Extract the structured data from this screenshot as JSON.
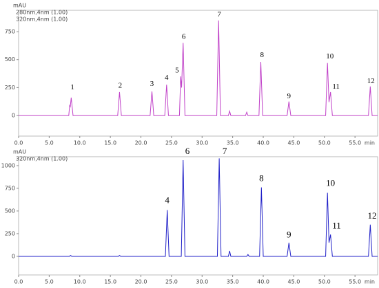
{
  "chart_data": [
    {
      "type": "line",
      "y_label": "mAU",
      "x_label": "min",
      "overlay_label": "320nm,4nm (1.00)",
      "overlay_color": "#e8b8e8",
      "x": [
        0,
        8.2,
        8.35,
        8.45,
        8.6,
        8.9,
        16.2,
        16.5,
        16.8,
        21.5,
        21.8,
        22.1,
        23.9,
        24.2,
        24.5,
        26.3,
        26.5,
        26.65,
        26.9,
        27.2,
        32.4,
        32.7,
        33.0,
        34.3,
        34.5,
        34.7,
        37.1,
        37.3,
        37.5,
        39.3,
        39.6,
        39.9,
        43.9,
        44.2,
        44.5,
        50.2,
        50.5,
        50.75,
        51.0,
        51.3,
        57.2,
        57.5,
        57.8,
        58.7
      ],
      "series": [
        {
          "name": "280nm,4nm (1.00)",
          "color": "#c040c8",
          "values": [
            0,
            0,
            90,
            80,
            160,
            0,
            0,
            210,
            0,
            0,
            215,
            0,
            0,
            275,
            0,
            0,
            350,
            250,
            650,
            0,
            0,
            850,
            0,
            0,
            40,
            0,
            0,
            30,
            0,
            0,
            480,
            0,
            0,
            125,
            0,
            0,
            470,
            120,
            210,
            0,
            0,
            260,
            0,
            0
          ]
        }
      ],
      "annotations": [
        {
          "text": "1",
          "x": 8.8,
          "y": 250
        },
        {
          "text": "2",
          "x": 16.6,
          "y": 265
        },
        {
          "text": "3",
          "x": 21.8,
          "y": 280
        },
        {
          "text": "4",
          "x": 24.2,
          "y": 335
        },
        {
          "text": "5",
          "x": 25.9,
          "y": 400
        },
        {
          "text": "6",
          "x": 27.0,
          "y": 700
        },
        {
          "text": "7",
          "x": 32.8,
          "y": 900
        },
        {
          "text": "8",
          "x": 39.8,
          "y": 540
        },
        {
          "text": "9",
          "x": 44.2,
          "y": 170
        },
        {
          "text": "10",
          "x": 50.9,
          "y": 525
        },
        {
          "text": "11",
          "x": 51.9,
          "y": 255
        },
        {
          "text": "12",
          "x": 57.6,
          "y": 305
        }
      ],
      "xlim": [
        0,
        58.7
      ],
      "ylim": [
        -184,
        941
      ],
      "yticks": [
        0,
        250,
        500,
        750
      ],
      "xticks": [
        {
          "value": 0,
          "label": "0.0"
        },
        {
          "value": 5,
          "label": "5.0"
        },
        {
          "value": 10,
          "label": "10.0"
        },
        {
          "value": 15,
          "label": "15.0"
        },
        {
          "value": 20,
          "label": "20.0"
        },
        {
          "value": 25,
          "label": "25.0"
        },
        {
          "value": 30,
          "label": "30.0"
        },
        {
          "value": 35,
          "label": "35.0"
        },
        {
          "value": 40,
          "label": "40.0"
        },
        {
          "value": 45,
          "label": "45.0"
        },
        {
          "value": 50,
          "label": "50.0"
        },
        {
          "value": 55,
          "label": "55.0"
        }
      ]
    },
    {
      "type": "line",
      "y_label": "mAU",
      "x_label": "min",
      "x": [
        0,
        8.3,
        8.5,
        8.7,
        16.3,
        16.5,
        16.7,
        24.0,
        24.3,
        24.6,
        26.6,
        26.9,
        27.2,
        32.5,
        32.8,
        33.1,
        34.3,
        34.5,
        34.7,
        37.3,
        37.5,
        37.7,
        39.4,
        39.7,
        40.0,
        43.9,
        44.2,
        44.5,
        50.2,
        50.5,
        50.75,
        51.0,
        51.3,
        57.2,
        57.5,
        57.8,
        58.7
      ],
      "series": [
        {
          "name": "320nm,4nm (1.00)",
          "color": "#2020c8",
          "values": [
            0,
            0,
            10,
            0,
            0,
            10,
            0,
            0,
            510,
            0,
            0,
            1060,
            0,
            0,
            1080,
            0,
            0,
            60,
            0,
            0,
            20,
            0,
            0,
            760,
            0,
            0,
            150,
            0,
            0,
            700,
            150,
            240,
            0,
            0,
            350,
            0,
            0
          ]
        }
      ],
      "annotations": [
        {
          "text": "4",
          "x": 24.3,
          "y": 610
        },
        {
          "text": "6",
          "x": 27.6,
          "y": 1150
        },
        {
          "text": "7",
          "x": 33.7,
          "y": 1150
        },
        {
          "text": "8",
          "x": 39.7,
          "y": 850
        },
        {
          "text": "9",
          "x": 44.2,
          "y": 230
        },
        {
          "text": "10",
          "x": 51.0,
          "y": 800
        },
        {
          "text": "11",
          "x": 52.0,
          "y": 330
        },
        {
          "text": "12",
          "x": 57.8,
          "y": 440
        }
      ],
      "xlim": [
        0,
        58.7
      ],
      "ylim": [
        -205,
        1098
      ],
      "yticks": [
        0,
        250,
        500,
        750,
        1000
      ],
      "xticks": [
        {
          "value": 0,
          "label": "0.0"
        },
        {
          "value": 5,
          "label": "5.0"
        },
        {
          "value": 10,
          "label": "10.0"
        },
        {
          "value": 15,
          "label": "15.0"
        },
        {
          "value": 20,
          "label": "20.0"
        },
        {
          "value": 25,
          "label": "25.0"
        },
        {
          "value": 30,
          "label": "30.0"
        },
        {
          "value": 35,
          "label": "35.0"
        },
        {
          "value": 40,
          "label": "40.0"
        },
        {
          "value": 45,
          "label": "45.0"
        },
        {
          "value": 50,
          "label": "50.0"
        },
        {
          "value": 55,
          "label": "55.0"
        }
      ]
    }
  ]
}
